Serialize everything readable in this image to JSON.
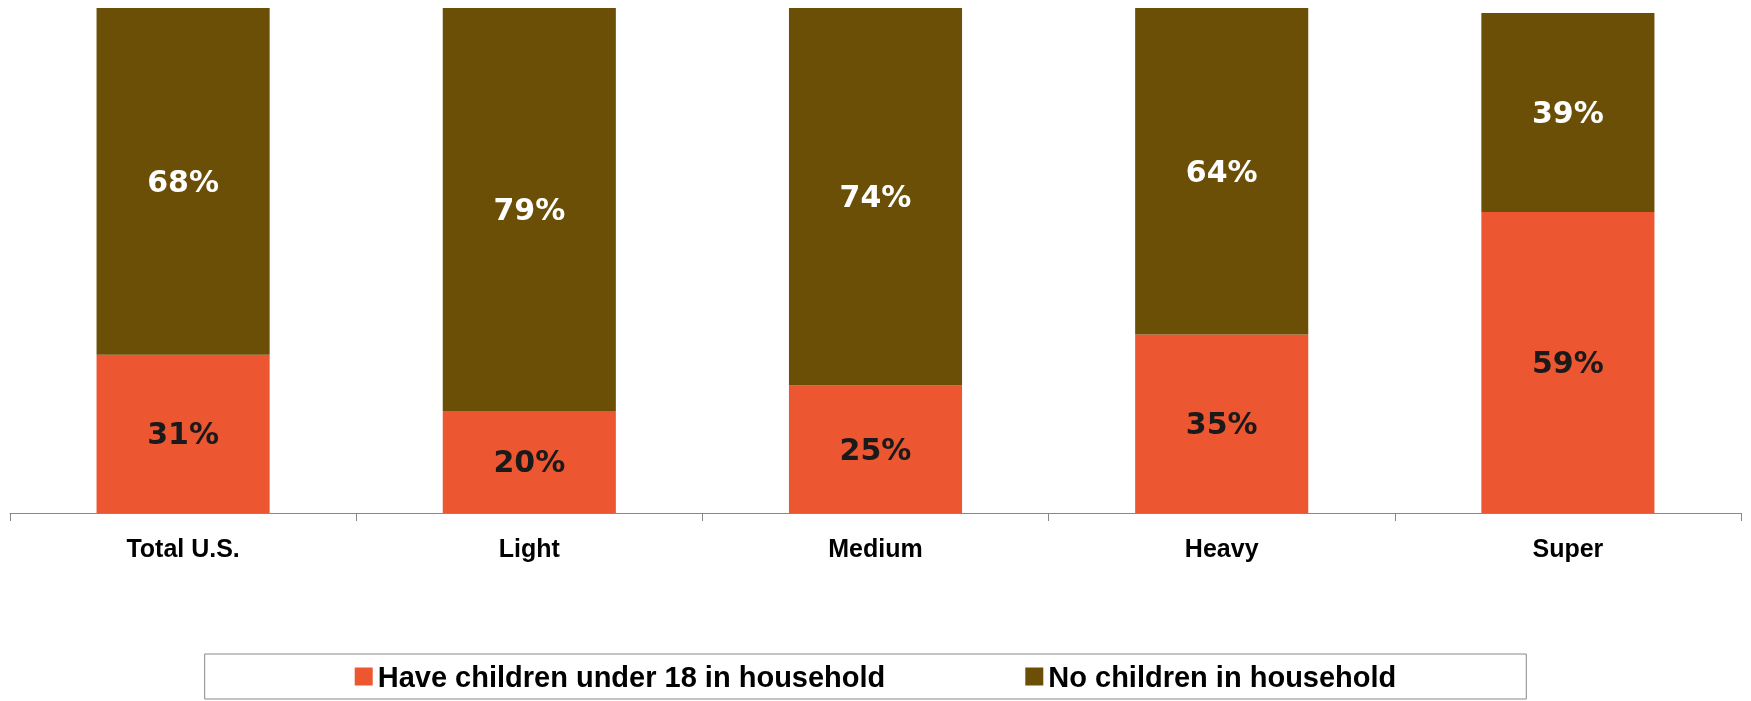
{
  "chart_data": {
    "type": "bar",
    "stacked": true,
    "tick_labels": "x",
    "legend": "bottom",
    "categories": [
      "Total U.S.",
      "Light",
      "Medium",
      "Heavy",
      "Super"
    ],
    "series": [
      {
        "name": "Have children under 18 in household",
        "color": "#ec5630",
        "values": [
          31,
          20,
          25,
          35,
          59
        ],
        "value_labels": [
          "31%",
          "20%",
          "25%",
          "35%",
          "59%"
        ]
      },
      {
        "name": "No children in household",
        "color": "#6b4f06",
        "values": [
          68,
          79,
          74,
          64,
          39
        ],
        "value_labels": [
          "68%",
          "79%",
          "74%",
          "64%",
          "39%"
        ]
      }
    ]
  }
}
